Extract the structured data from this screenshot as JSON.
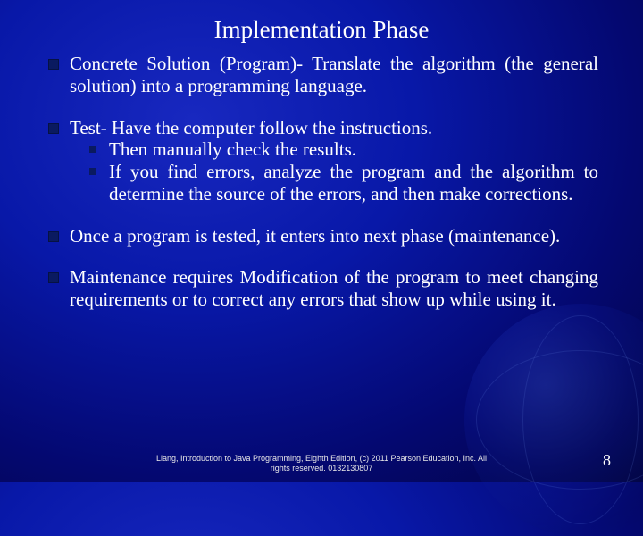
{
  "title": "Implementation Phase",
  "bullets": [
    {
      "text": "Concrete Solution (Program)- Translate the algorithm (the general solution) into a programming language."
    },
    {
      "text": "Test- Have the computer follow the instructions.",
      "sub": [
        "Then manually check the results.",
        "If you find errors, analyze the program and the algorithm to determine the source of the errors, and then make corrections."
      ]
    },
    {
      "text": "Once a program is tested, it enters into next phase (maintenance)."
    },
    {
      "text": "Maintenance requires Modification of the program to meet changing requirements or to correct any errors that show up while using it."
    }
  ],
  "footer_line1": "Liang, Introduction to Java Programming, Eighth Edition, (c) 2011 Pearson Education, Inc. All",
  "footer_line2": "rights reserved. 0132130807",
  "page_number": "8"
}
